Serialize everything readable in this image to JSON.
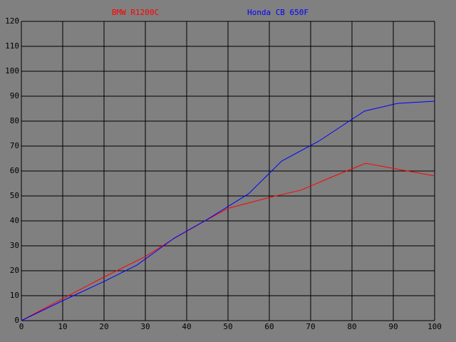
{
  "chart_data": {
    "type": "line",
    "series": [
      {
        "name": "BMW R1200C",
        "color": "#ff0000",
        "x": [
          0,
          10,
          20,
          30,
          37,
          45,
          50,
          60,
          67.6,
          75,
          83.3,
          100
        ],
        "values": [
          0,
          8.8,
          17.5,
          25.7,
          33,
          40.5,
          45,
          49.4,
          52.3,
          57.5,
          63.1,
          58
        ]
      },
      {
        "name": "Honda CB 650F",
        "color": "#0000ff",
        "x": [
          0,
          10,
          20,
          28,
          37,
          45,
          55,
          63,
          72,
          83,
          91,
          100
        ],
        "values": [
          0,
          8,
          15.7,
          22.3,
          33.1,
          40.6,
          50.9,
          64,
          72,
          84,
          87.1,
          88
        ]
      }
    ],
    "xlim": [
      0,
      100
    ],
    "xticks": [
      0,
      10,
      20,
      30,
      40,
      50,
      60,
      70,
      80,
      90,
      100
    ],
    "ylim": [
      0,
      120
    ],
    "yticks": [
      0,
      10,
      20,
      30,
      40,
      50,
      60,
      70,
      80,
      90,
      100,
      110,
      120
    ],
    "grid": true
  }
}
